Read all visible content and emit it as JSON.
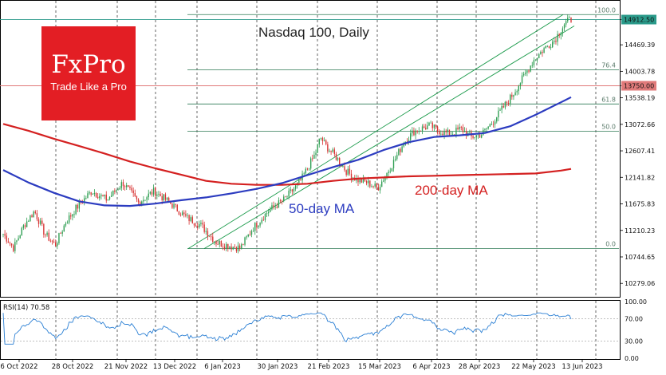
{
  "logo": {
    "brand": "FxPro",
    "tagline": "Trade Like a Pro"
  },
  "chart_data": {
    "type": "candlestick",
    "title": "Nasdaq 100, Daily",
    "y_ticks": [
      "14912.50",
      "14469.39",
      "14003.78",
      "13750.00",
      "13538.19",
      "13072.66",
      "12607.41",
      "12141.82",
      "11675.83",
      "11210.23",
      "10744.65",
      "10279.06"
    ],
    "x_ticks": [
      "6 Oct 2022",
      "28 Oct 2022",
      "21 Nov 2022",
      "13 Dec 2022",
      "6 Jan 2023",
      "30 Jan 2023",
      "21 Feb 2023",
      "15 Mar 2023",
      "6 Apr 2023",
      "28 Apr 2023",
      "22 May 2023",
      "13 Jun 2023"
    ],
    "current_price_label": "14912.50",
    "level_line_label": "13750.00",
    "fib_levels": [
      {
        "label": "100.0",
        "value": 15000
      },
      {
        "label": "76.4",
        "value": 14030
      },
      {
        "label": "61.8",
        "value": 13430
      },
      {
        "label": "50.0",
        "value": 12950
      },
      {
        "label": "0.0",
        "value": 10890
      }
    ],
    "channel_label_ma50": "50-day MA",
    "channel_label_ma200": "200-day MA",
    "ylim": [
      10044,
      15200
    ],
    "ma50_points": [
      [
        0,
        12270
      ],
      [
        15,
        12050
      ],
      [
        30,
        11870
      ],
      [
        45,
        11720
      ],
      [
        60,
        11650
      ],
      [
        75,
        11640
      ],
      [
        90,
        11680
      ],
      [
        105,
        11740
      ],
      [
        120,
        11790
      ],
      [
        135,
        11860
      ],
      [
        150,
        11940
      ],
      [
        165,
        12040
      ],
      [
        180,
        12180
      ],
      [
        195,
        12320
      ],
      [
        210,
        12450
      ],
      [
        225,
        12620
      ],
      [
        240,
        12760
      ],
      [
        255,
        12850
      ],
      [
        270,
        12880
      ],
      [
        285,
        12920
      ],
      [
        300,
        13040
      ],
      [
        315,
        13240
      ],
      [
        330,
        13460
      ],
      [
        336,
        13550
      ]
    ],
    "ma200_points": [
      [
        0,
        13080
      ],
      [
        15,
        12960
      ],
      [
        30,
        12820
      ],
      [
        45,
        12690
      ],
      [
        60,
        12560
      ],
      [
        75,
        12420
      ],
      [
        90,
        12300
      ],
      [
        105,
        12190
      ],
      [
        120,
        12080
      ],
      [
        135,
        12030
      ],
      [
        150,
        12010
      ],
      [
        165,
        12010
      ],
      [
        180,
        12030
      ],
      [
        195,
        12080
      ],
      [
        210,
        12120
      ],
      [
        225,
        12140
      ],
      [
        240,
        12160
      ],
      [
        255,
        12170
      ],
      [
        270,
        12180
      ],
      [
        285,
        12190
      ],
      [
        300,
        12200
      ],
      [
        315,
        12210
      ],
      [
        330,
        12260
      ],
      [
        336,
        12290
      ]
    ],
    "rsi": {
      "label": "RSI(14) 70.58",
      "ticks": [
        "100.00",
        "70.00",
        "30.00",
        "0.00"
      ],
      "levels": [
        70,
        30
      ]
    },
    "legend": "none",
    "grid": "vertical dashed"
  }
}
